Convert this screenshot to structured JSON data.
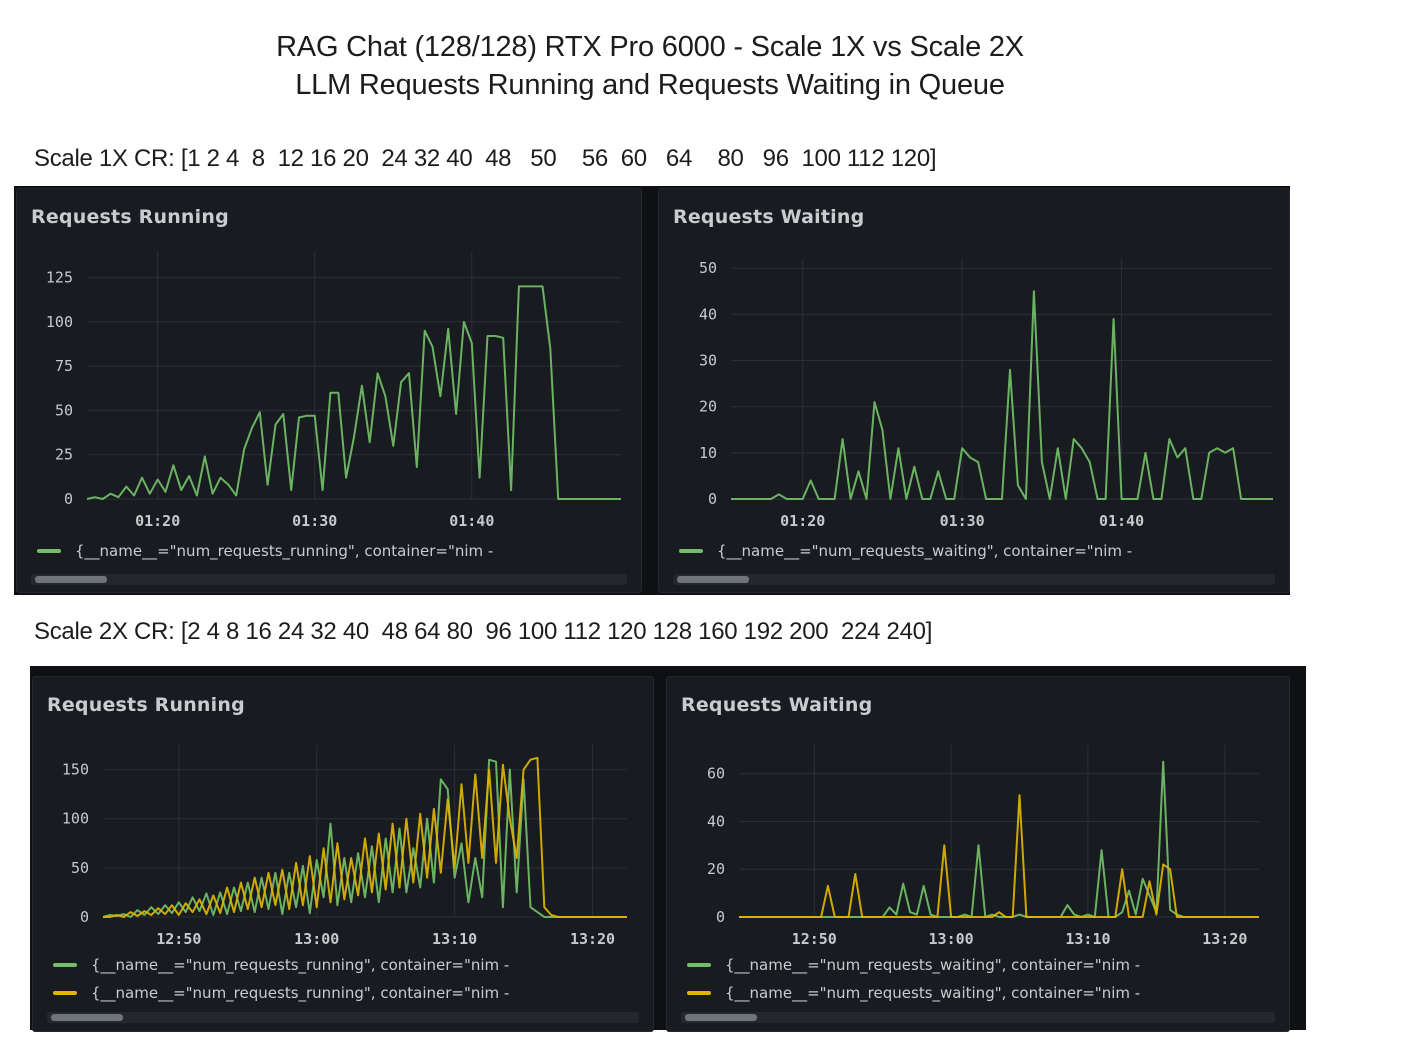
{
  "title": {
    "line1": "RAG Chat (128/128) RTX Pro 6000 -  Scale 1X vs Scale 2X",
    "line2": "LLM Requests Running and Requests Waiting in Queue"
  },
  "scale1x_label": "Scale 1X CR: [1 2 4  8  12 16 20  24 32 40  48   50    56  60   64    80   96  100 112 120]",
  "scale2x_label": "Scale 2X CR: [2 4 8 16 24 32 40  48 64 80  96 100 112 120 128 160 192 200  224 240]",
  "colors": {
    "green": "#73bf69",
    "yellow": "#e0b400",
    "grid": "#2c2f35",
    "tick": "#c7c9cd",
    "panel": "#181b1f"
  },
  "chart_data": [
    {
      "id": "s1-running",
      "type": "line",
      "title": "Requests Running",
      "x_ticks": [
        "01:20",
        "01:30",
        "01:40"
      ],
      "x_tick_minutes": [
        80,
        90,
        100
      ],
      "xlim_minutes": [
        75.5,
        109.5
      ],
      "y_ticks": [
        0,
        25,
        50,
        75,
        100,
        125
      ],
      "ylim": [
        0,
        140
      ],
      "legend_entries": [
        "{__name__=\"num_requests_running\", container=\"nim -"
      ],
      "series": [
        {
          "color": "green",
          "x": [
            75.5,
            76,
            76.5,
            77,
            77.5,
            78,
            78.5,
            79,
            79.5,
            80,
            80.5,
            81,
            81.5,
            82,
            82.5,
            83,
            83.5,
            84,
            84.5,
            85,
            85.5,
            86,
            86.5,
            87,
            87.5,
            88,
            88.5,
            89,
            89.5,
            90,
            90.5,
            91,
            91.5,
            92,
            92.5,
            93,
            93.5,
            94,
            94.5,
            95,
            95.5,
            96,
            96.5,
            97,
            97.5,
            98,
            98.5,
            99,
            99.5,
            100,
            100.5,
            101,
            101.5,
            102,
            102.5,
            103,
            103.5,
            104,
            104.5,
            105,
            105.5,
            106,
            106.5,
            107,
            107.5,
            108,
            108.5,
            109,
            109.5
          ],
          "y": [
            0,
            1,
            0,
            3,
            1,
            7,
            2,
            12,
            3,
            11,
            4,
            19,
            5,
            13,
            2,
            24,
            3,
            12,
            8,
            2,
            28,
            40,
            49,
            8,
            42,
            48,
            5,
            46,
            47,
            47,
            5,
            60,
            60,
            12,
            35,
            64,
            32,
            71,
            58,
            30,
            66,
            71,
            18,
            95,
            86,
            58,
            96,
            48,
            100,
            88,
            12,
            92,
            92,
            91,
            5,
            120,
            120,
            120,
            120,
            85,
            0,
            0,
            0,
            0,
            0,
            0,
            0,
            0,
            0
          ]
        }
      ]
    },
    {
      "id": "s1-waiting",
      "type": "line",
      "title": "Requests Waiting",
      "x_ticks": [
        "01:20",
        "01:30",
        "01:40"
      ],
      "x_tick_minutes": [
        80,
        90,
        100
      ],
      "xlim_minutes": [
        75.5,
        109.5
      ],
      "y_ticks": [
        0,
        10,
        20,
        30,
        40,
        50
      ],
      "ylim": [
        0,
        52
      ],
      "legend_entries": [
        "{__name__=\"num_requests_waiting\", container=\"nim -"
      ],
      "series": [
        {
          "color": "green",
          "x": [
            75.5,
            76,
            76.5,
            77,
            77.5,
            78,
            78.5,
            79,
            79.5,
            80,
            80.5,
            81,
            81.5,
            82,
            82.5,
            83,
            83.5,
            84,
            84.5,
            85,
            85.5,
            86,
            86.5,
            87,
            87.5,
            88,
            88.5,
            89,
            89.5,
            90,
            90.5,
            91,
            91.5,
            92,
            92.5,
            93,
            93.5,
            94,
            94.5,
            95,
            95.5,
            96,
            96.5,
            97,
            97.5,
            98,
            98.5,
            99,
            99.5,
            100,
            100.5,
            101,
            101.5,
            102,
            102.5,
            103,
            103.5,
            104,
            104.5,
            105,
            105.5,
            106,
            106.5,
            107,
            107.5,
            108,
            108.5,
            109,
            109.5
          ],
          "y": [
            0,
            0,
            0,
            0,
            0,
            0,
            1,
            0,
            0,
            0,
            4,
            0,
            0,
            0,
            13,
            0,
            6,
            0,
            21,
            15,
            0,
            11,
            0,
            7,
            0,
            0,
            6,
            0,
            0,
            11,
            9,
            8,
            0,
            0,
            0,
            28,
            3,
            0,
            45,
            8,
            0,
            11,
            0,
            13,
            11,
            8,
            0,
            0,
            39,
            0,
            0,
            0,
            10,
            0,
            0,
            13,
            9,
            11,
            0,
            0,
            10,
            11,
            10,
            11,
            0,
            0,
            0,
            0,
            0
          ]
        }
      ]
    },
    {
      "id": "s2-running",
      "type": "line",
      "title": "Requests Running",
      "x_ticks": [
        "12:50",
        "13:00",
        "13:10",
        "13:20"
      ],
      "x_tick_minutes": [
        770,
        780,
        790,
        800
      ],
      "xlim_minutes": [
        764.5,
        802.5
      ],
      "y_ticks": [
        0,
        50,
        100,
        150
      ],
      "ylim": [
        0,
        175
      ],
      "legend_entries": [
        "{__name__=\"num_requests_running\", container=\"nim -",
        "{__name__=\"num_requests_running\", container=\"nim -"
      ],
      "series": [
        {
          "color": "green",
          "x": [
            764.5,
            765,
            765.5,
            766,
            766.5,
            767,
            767.5,
            768,
            768.5,
            769,
            769.5,
            770,
            770.5,
            771,
            771.5,
            772,
            772.5,
            773,
            773.5,
            774,
            774.5,
            775,
            775.5,
            776,
            776.5,
            777,
            777.5,
            778,
            778.5,
            779,
            779.5,
            780,
            780.5,
            781,
            781.5,
            782,
            782.5,
            783,
            783.5,
            784,
            784.5,
            785,
            785.5,
            786,
            786.5,
            787,
            787.5,
            788,
            788.5,
            789,
            789.5,
            790,
            790.5,
            791,
            791.5,
            792,
            792.5,
            793,
            793.5,
            794,
            794.5,
            795,
            795.5,
            796,
            796.5,
            797,
            797.5,
            798,
            798.5,
            799,
            799.5,
            800,
            800.5,
            801,
            801.5,
            802,
            802.5
          ],
          "y": [
            0,
            2,
            1,
            3,
            0,
            7,
            2,
            10,
            3,
            12,
            4,
            15,
            5,
            20,
            6,
            24,
            2,
            25,
            3,
            30,
            6,
            35,
            5,
            40,
            8,
            45,
            3,
            45,
            10,
            52,
            4,
            58,
            20,
            95,
            12,
            60,
            15,
            65,
            20,
            72,
            15,
            80,
            25,
            90,
            25,
            70,
            30,
            100,
            35,
            140,
            130,
            40,
            75,
            15,
            60,
            20,
            160,
            158,
            10,
            150,
            25,
            140,
            10,
            5,
            0,
            0,
            0,
            0,
            0,
            0,
            0,
            0,
            0,
            0,
            0,
            0,
            0
          ]
        },
        {
          "color": "yellow",
          "x": [
            764.5,
            765,
            765.5,
            766,
            766.5,
            767,
            767.5,
            768,
            768.5,
            769,
            769.5,
            770,
            770.5,
            771,
            771.5,
            772,
            772.5,
            773,
            773.5,
            774,
            774.5,
            775,
            775.5,
            776,
            776.5,
            777,
            777.5,
            778,
            778.5,
            779,
            779.5,
            780,
            780.5,
            781,
            781.5,
            782,
            782.5,
            783,
            783.5,
            784,
            784.5,
            785,
            785.5,
            786,
            786.5,
            787,
            787.5,
            788,
            788.5,
            789,
            789.5,
            790,
            790.5,
            791,
            791.5,
            792,
            792.5,
            793,
            793.5,
            794,
            794.5,
            795,
            795.5,
            796,
            796.5,
            797,
            797.5,
            798,
            798.5,
            799,
            799.5,
            800,
            800.5,
            801,
            801.5,
            802,
            802.5
          ],
          "y": [
            0,
            0,
            2,
            0,
            5,
            1,
            6,
            2,
            9,
            3,
            12,
            2,
            14,
            5,
            18,
            3,
            22,
            4,
            30,
            5,
            35,
            8,
            40,
            10,
            45,
            12,
            48,
            8,
            55,
            12,
            62,
            10,
            70,
            15,
            75,
            18,
            60,
            22,
            80,
            25,
            85,
            28,
            95,
            30,
            100,
            35,
            105,
            40,
            110,
            45,
            120,
            50,
            135,
            55,
            145,
            60,
            150,
            55,
            155,
            100,
            60,
            150,
            160,
            162,
            10,
            2,
            0,
            0,
            0,
            0,
            0,
            0,
            0,
            0,
            0,
            0,
            0
          ]
        }
      ]
    },
    {
      "id": "s2-waiting",
      "type": "line",
      "title": "Requests Waiting",
      "x_ticks": [
        "12:50",
        "13:00",
        "13:10",
        "13:20"
      ],
      "x_tick_minutes": [
        770,
        780,
        790,
        800
      ],
      "xlim_minutes": [
        764.5,
        802.5
      ],
      "y_ticks": [
        0,
        20,
        40,
        60
      ],
      "ylim": [
        0,
        72
      ],
      "legend_entries": [
        "{__name__=\"num_requests_waiting\", container=\"nim -",
        "{__name__=\"num_requests_waiting\", container=\"nim -"
      ],
      "series": [
        {
          "color": "green",
          "x": [
            764.5,
            765,
            765.5,
            766,
            766.5,
            767,
            767.5,
            768,
            768.5,
            769,
            769.5,
            770,
            770.5,
            771,
            771.5,
            772,
            772.5,
            773,
            773.5,
            774,
            774.5,
            775,
            775.5,
            776,
            776.5,
            777,
            777.5,
            778,
            778.5,
            779,
            779.5,
            780,
            780.5,
            781,
            781.5,
            782,
            782.5,
            783,
            783.5,
            784,
            784.5,
            785,
            785.5,
            786,
            786.5,
            787,
            787.5,
            788,
            788.5,
            789,
            789.5,
            790,
            790.5,
            791,
            791.5,
            792,
            792.5,
            793,
            793.5,
            794,
            794.5,
            795,
            795.5,
            796,
            796.5,
            797,
            797.5,
            798,
            798.5,
            799,
            799.5,
            800,
            800.5,
            801,
            801.5,
            802,
            802.5
          ],
          "y": [
            0,
            0,
            0,
            0,
            0,
            0,
            0,
            0,
            0,
            0,
            0,
            0,
            0,
            0,
            0,
            0,
            0,
            0,
            0,
            0,
            0,
            0,
            4,
            1,
            14,
            2,
            1,
            13,
            1,
            0,
            0,
            0,
            0,
            1,
            0,
            30,
            0,
            1,
            0,
            0,
            0,
            1,
            0,
            0,
            0,
            0,
            0,
            0,
            5,
            1,
            0,
            1,
            0,
            28,
            0,
            0,
            2,
            11,
            1,
            16,
            9,
            2,
            65,
            3,
            1,
            0,
            0,
            0,
            0,
            0,
            0,
            0,
            0,
            0,
            0,
            0,
            0
          ]
        },
        {
          "color": "yellow",
          "x": [
            764.5,
            765,
            765.5,
            766,
            766.5,
            767,
            767.5,
            768,
            768.5,
            769,
            769.5,
            770,
            770.5,
            771,
            771.5,
            772,
            772.5,
            773,
            773.5,
            774,
            774.5,
            775,
            775.5,
            776,
            776.5,
            777,
            777.5,
            778,
            778.5,
            779,
            779.5,
            780,
            780.5,
            781,
            781.5,
            782,
            782.5,
            783,
            783.5,
            784,
            784.5,
            785,
            785.5,
            786,
            786.5,
            787,
            787.5,
            788,
            788.5,
            789,
            789.5,
            790,
            790.5,
            791,
            791.5,
            792,
            792.5,
            793,
            793.5,
            794,
            794.5,
            795,
            795.5,
            796,
            796.5,
            797,
            797.5,
            798,
            798.5,
            799,
            799.5,
            800,
            800.5,
            801,
            801.5,
            802,
            802.5
          ],
          "y": [
            0,
            0,
            0,
            0,
            0,
            0,
            0,
            0,
            0,
            0,
            0,
            0,
            0,
            13,
            0,
            0,
            0,
            18,
            0,
            0,
            0,
            0,
            0,
            0,
            0,
            0,
            0,
            0,
            0,
            0,
            30,
            0,
            0,
            0,
            0,
            0,
            0,
            0,
            2,
            0,
            0,
            51,
            0,
            0,
            0,
            0,
            0,
            0,
            0,
            0,
            0,
            0,
            0,
            0,
            0,
            0,
            20,
            0,
            0,
            0,
            15,
            1,
            22,
            20,
            0,
            0,
            0,
            0,
            0,
            0,
            0,
            0,
            0,
            0,
            0,
            0,
            0
          ]
        }
      ]
    }
  ]
}
